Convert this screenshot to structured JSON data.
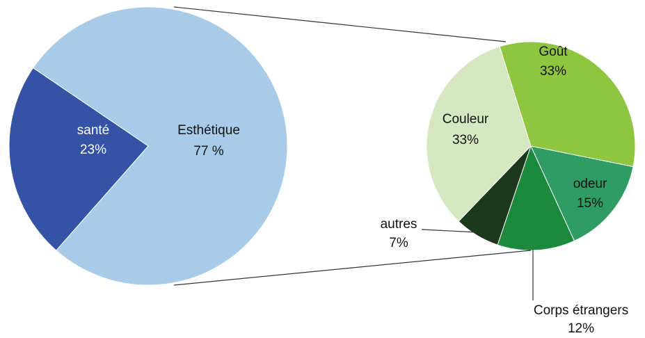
{
  "chart_data": [
    {
      "type": "pie",
      "categories": [
        "santé",
        "Esthétique"
      ],
      "values": [
        23,
        77
      ],
      "value_labels": [
        "23%",
        "77 %"
      ],
      "colors": [
        "#3452a6",
        "#a8cbe9"
      ]
    },
    {
      "type": "pie",
      "categories": [
        "Goût",
        "odeur",
        "Corps étrangers",
        "autres",
        "Couleur"
      ],
      "values": [
        33,
        15,
        12,
        7,
        33
      ],
      "value_labels": [
        "33%",
        "15%",
        "12%",
        "7%",
        "33%"
      ],
      "colors": [
        "#8ec63f",
        "#2f9d63",
        "#1b8a3d",
        "#1c3a1b",
        "#d5e8c2"
      ]
    }
  ]
}
